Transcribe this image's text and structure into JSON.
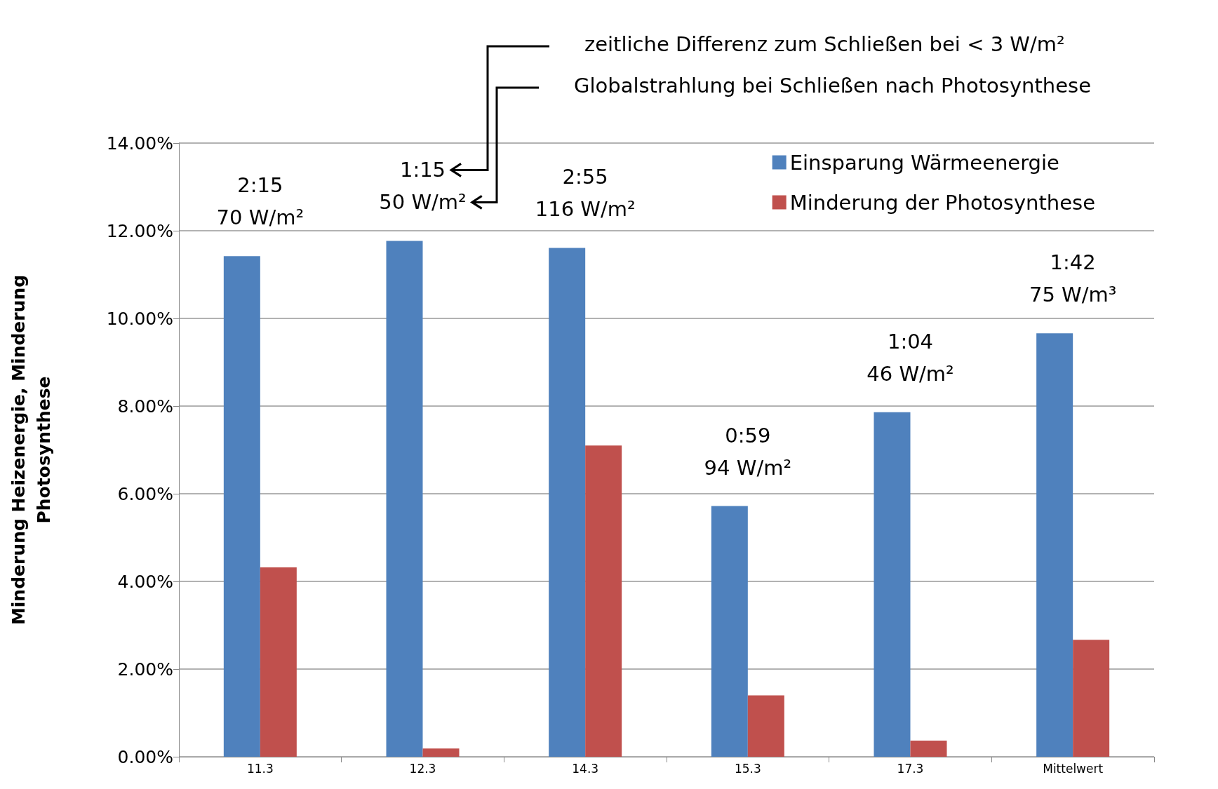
{
  "chart_data": {
    "type": "bar",
    "ylabel": "Minderung Heizenergie, Minderung Photosynthese",
    "categories": [
      "11.3",
      "12.3",
      "14.3",
      "15.3",
      "17.3",
      "Mittelwert"
    ],
    "series": [
      {
        "name": "Einsparung Wärmeenergie",
        "color": "#4f81bd",
        "values": [
          11.42,
          11.77,
          11.61,
          5.72,
          7.86,
          9.66
        ]
      },
      {
        "name": "Minderung der Photosynthese",
        "color": "#c0504d",
        "values": [
          4.32,
          0.19,
          7.1,
          1.4,
          0.37,
          2.67
        ]
      }
    ],
    "ylim": [
      0,
      14
    ],
    "yticks": [
      {
        "value": 0,
        "label": "0.00%"
      },
      {
        "value": 2,
        "label": "2.00%"
      },
      {
        "value": 4,
        "label": "4.00%"
      },
      {
        "value": 6,
        "label": "6.00%"
      },
      {
        "value": 8,
        "label": "8.00%"
      },
      {
        "value": 10,
        "label": "10.00%"
      },
      {
        "value": 12,
        "label": "12.00%"
      },
      {
        "value": 14,
        "label": "14.00%"
      }
    ],
    "grid": "y",
    "legend": "top right",
    "annotations": [
      "zeitliche Differenz zum Schließen bei < 3 W/m²",
      "Globalstrahlung bei Schließen nach Photosynthese",
      "2:15\n70 W/m²",
      "1:15\n50 W/m²",
      "2:55\n116 W/m²",
      "0:59\n94 W/m²",
      "1:04\n46 W/m²",
      "1:42\n75 W/m³"
    ]
  }
}
